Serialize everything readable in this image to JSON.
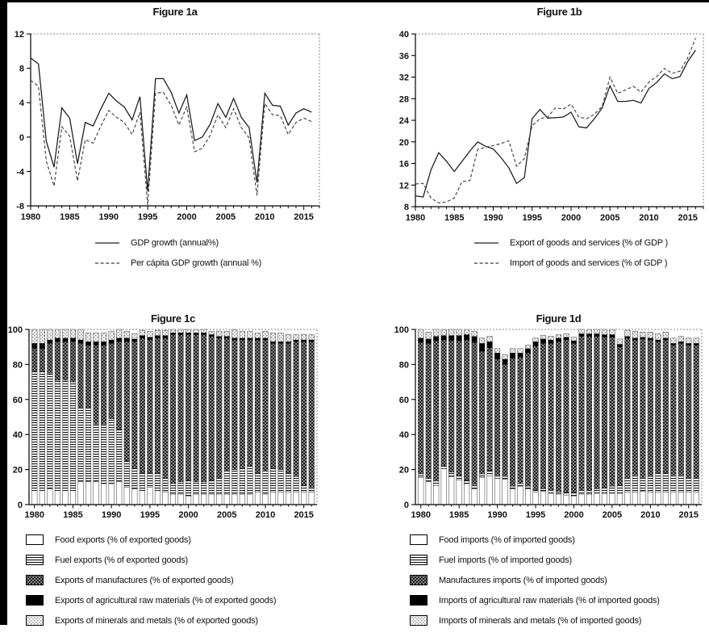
{
  "page": {
    "background": "#ffffff",
    "frame_color": "#000000",
    "text_color": "#111111"
  },
  "panels": {
    "a": {
      "title": "Figure 1a"
    },
    "b": {
      "title": "Figure 1b"
    },
    "c": {
      "title": "Figure 1c"
    },
    "d": {
      "title": "Figure 1d"
    }
  },
  "chart_data": [
    {
      "id": "fig1a",
      "type": "line",
      "title": "Figure 1a",
      "xlabel": "",
      "ylabel": "",
      "ylim": [
        -8,
        12
      ],
      "yticks": [
        -8,
        -4,
        0,
        4,
        8,
        12
      ],
      "xticks": [
        1980,
        1985,
        1990,
        1995,
        2000,
        2005,
        2010,
        2015
      ],
      "grid": false,
      "legend_position": "below",
      "x": [
        1980,
        1981,
        1982,
        1983,
        1984,
        1985,
        1986,
        1987,
        1988,
        1989,
        1990,
        1991,
        1992,
        1993,
        1994,
        1995,
        1996,
        1997,
        1998,
        1999,
        2000,
        2001,
        2002,
        2003,
        2004,
        2005,
        2006,
        2007,
        2008,
        2009,
        2010,
        2011,
        2012,
        2013,
        2014,
        2015,
        2016
      ],
      "series": [
        {
          "name": "GDP growth (annual%)",
          "style": "solid",
          "values": [
            9.2,
            8.5,
            -0.5,
            -3.5,
            3.4,
            2.2,
            -3.1,
            1.7,
            1.3,
            3.3,
            5.1,
            4.2,
            3.5,
            2.0,
            4.7,
            -6.3,
            6.8,
            6.8,
            5.2,
            2.8,
            4.9,
            -0.4,
            0.0,
            1.5,
            3.9,
            2.3,
            4.5,
            2.3,
            1.1,
            -5.3,
            5.1,
            3.7,
            3.6,
            1.4,
            2.8,
            3.3,
            2.9
          ]
        },
        {
          "name": "Per cápita GDP growth (annual %)",
          "style": "dashed",
          "values": [
            6.6,
            5.9,
            -2.8,
            -5.7,
            1.2,
            0.1,
            -5.1,
            -0.3,
            -0.7,
            1.3,
            3.1,
            2.3,
            1.7,
            0.3,
            2.9,
            -7.9,
            5.1,
            5.2,
            3.7,
            1.4,
            3.5,
            -1.7,
            -1.3,
            0.2,
            2.6,
            1.1,
            3.3,
            1.1,
            -0.1,
            -6.8,
            3.9,
            2.6,
            2.5,
            0.3,
            1.7,
            2.2,
            1.8
          ]
        }
      ]
    },
    {
      "id": "fig1b",
      "type": "line",
      "title": "Figure 1b",
      "xlabel": "",
      "ylabel": "",
      "ylim": [
        8,
        40
      ],
      "yticks": [
        8,
        12,
        16,
        20,
        24,
        28,
        32,
        36,
        40
      ],
      "xticks": [
        1980,
        1985,
        1990,
        1995,
        2000,
        2005,
        2010,
        2015
      ],
      "grid": false,
      "legend_position": "below",
      "x": [
        1980,
        1981,
        1982,
        1983,
        1984,
        1985,
        1986,
        1987,
        1988,
        1989,
        1990,
        1991,
        1992,
        1993,
        1994,
        1995,
        1996,
        1997,
        1998,
        1999,
        2000,
        2001,
        2002,
        2003,
        2004,
        2005,
        2006,
        2007,
        2008,
        2009,
        2010,
        2011,
        2012,
        2013,
        2014,
        2015,
        2016
      ],
      "series": [
        {
          "name": "Export of goods and services (% of GDP )",
          "style": "solid",
          "values": [
            10.0,
            9.8,
            14.8,
            18.0,
            16.4,
            14.5,
            16.4,
            18.3,
            20.0,
            19.2,
            18.7,
            17.1,
            15.2,
            12.3,
            13.4,
            24.3,
            26.0,
            24.4,
            24.5,
            24.6,
            25.5,
            22.8,
            22.6,
            24.3,
            26.3,
            30.4,
            27.5,
            27.5,
            27.7,
            27.2,
            29.9,
            31.0,
            32.6,
            31.7,
            32.1,
            34.9,
            37.0
          ]
        },
        {
          "name": "Import of goods and services (% of GDP )",
          "style": "dashed",
          "values": [
            12.2,
            12.3,
            9.6,
            8.7,
            8.9,
            9.6,
            12.7,
            12.8,
            18.6,
            19.0,
            19.3,
            19.7,
            20.2,
            15.5,
            16.9,
            23.0,
            24.3,
            24.6,
            26.3,
            26.1,
            27.0,
            24.6,
            24.3,
            25.1,
            26.6,
            32.0,
            29.0,
            29.6,
            30.3,
            29.2,
            31.1,
            32.1,
            33.6,
            32.7,
            33.1,
            35.6,
            39.2
          ]
        }
      ]
    },
    {
      "id": "fig1c",
      "type": "bar",
      "stacked": true,
      "title": "Figure 1c",
      "xlabel": "",
      "ylabel": "",
      "ylim": [
        0,
        100
      ],
      "yticks": [
        0,
        20,
        40,
        60,
        80,
        100
      ],
      "xticks": [
        1980,
        1985,
        1990,
        1995,
        2000,
        2005,
        2010,
        2015
      ],
      "grid": false,
      "legend_position": "below",
      "categories": [
        1980,
        1981,
        1982,
        1983,
        1984,
        1985,
        1986,
        1987,
        1988,
        1989,
        1990,
        1991,
        1992,
        1993,
        1994,
        1995,
        1996,
        1997,
        1998,
        1999,
        2000,
        2001,
        2002,
        2003,
        2004,
        2005,
        2006,
        2007,
        2008,
        2009,
        2010,
        2011,
        2012,
        2013,
        2014,
        2015,
        2016
      ],
      "series": [
        {
          "name": "Food exports (% of exported goods)",
          "pattern": "plain",
          "values": [
            8,
            8,
            9,
            8,
            8,
            8,
            13,
            13,
            13,
            12,
            12,
            13,
            10,
            9,
            8,
            10,
            8,
            7,
            6,
            6,
            5,
            6,
            6,
            6,
            6,
            6,
            6,
            6,
            6,
            7,
            6,
            7,
            7,
            7,
            7,
            7,
            7
          ]
        },
        {
          "name": "Fuel exports (% of exported goods)",
          "pattern": "hlines",
          "values": [
            68,
            68,
            66,
            63,
            63,
            62,
            42,
            42,
            33,
            34,
            37,
            30,
            15,
            12,
            10,
            8,
            10,
            8,
            6,
            7,
            9,
            7,
            7,
            8,
            9,
            13,
            14,
            15,
            16,
            11,
            13,
            14,
            13,
            11,
            9,
            4,
            3
          ]
        },
        {
          "name": "Exports of manufactures (% of exported goods)",
          "pattern": "darkchecker",
          "values": [
            13,
            13,
            17,
            22,
            22,
            23,
            37,
            36,
            45,
            45,
            43,
            50,
            68,
            72,
            77,
            76,
            77,
            80,
            85,
            84,
            83,
            84,
            84,
            82,
            80,
            76,
            74,
            73,
            72,
            76,
            75,
            71,
            72,
            74,
            77,
            82,
            83
          ]
        },
        {
          "name": "Exports of agricultural raw materials (% of exported goods)",
          "pattern": "solidblack",
          "values": [
            3,
            3,
            2,
            2,
            2,
            2,
            2,
            2,
            2,
            2,
            2,
            2,
            2,
            1.5,
            1.5,
            1.5,
            1.5,
            1.5,
            1,
            1,
            1,
            1,
            1,
            1,
            1,
            1,
            1,
            1,
            1,
            1,
            1,
            1,
            1,
            1,
            1,
            1,
            1
          ]
        },
        {
          "name": "Exports of minerals and metals (% of exported goods)",
          "pattern": "lightdots",
          "values": [
            8,
            8,
            6,
            5,
            5,
            5,
            6,
            5,
            5,
            5,
            5,
            5,
            4,
            3,
            3,
            3.5,
            3,
            3,
            2,
            2,
            2,
            2,
            2,
            2,
            3,
            3,
            5,
            4,
            4,
            3,
            4,
            5,
            5,
            4,
            3,
            3,
            3
          ]
        }
      ]
    },
    {
      "id": "fig1d",
      "type": "bar",
      "stacked": true,
      "title": "Figure 1d",
      "xlabel": "",
      "ylabel": "",
      "ylim": [
        0,
        100
      ],
      "yticks": [
        0,
        20,
        40,
        60,
        80,
        100
      ],
      "xticks": [
        1980,
        1985,
        1990,
        1995,
        2000,
        2005,
        2010,
        2015
      ],
      "grid": false,
      "legend_position": "below",
      "categories": [
        1980,
        1981,
        1982,
        1983,
        1984,
        1985,
        1986,
        1987,
        1988,
        1989,
        1990,
        1991,
        1992,
        1993,
        1994,
        1995,
        1996,
        1997,
        1998,
        1999,
        2000,
        2001,
        2002,
        2003,
        2004,
        2005,
        2006,
        2007,
        2008,
        2009,
        2010,
        2011,
        2012,
        2013,
        2014,
        2015,
        2016
      ],
      "series": [
        {
          "name": "Food imports (% of imported goods)",
          "pattern": "plain",
          "values": [
            15.5,
            13,
            11,
            20.5,
            16,
            14,
            12,
            9,
            15.5,
            16.5,
            15,
            14.5,
            9,
            10.5,
            9,
            7,
            7.5,
            6.5,
            6,
            5.5,
            5,
            6,
            6,
            6.5,
            6.5,
            6.5,
            6.5,
            7,
            7,
            7.5,
            7,
            7,
            7,
            7,
            7,
            7,
            7
          ]
        },
        {
          "name": "Fuel imports (% of imported goods)",
          "pattern": "hlines",
          "values": [
            2,
            2,
            2.5,
            1.5,
            2.5,
            2.5,
            2,
            2.5,
            2,
            3,
            2,
            1.5,
            1.5,
            1.5,
            1.5,
            1.5,
            1.5,
            1.5,
            1.5,
            1.5,
            2,
            2,
            2,
            2.5,
            3,
            4,
            4.5,
            8,
            10,
            8,
            9,
            11,
            11,
            10,
            10,
            8,
            8
          ]
        },
        {
          "name": "Manufactures imports (% of imported goods)",
          "pattern": "darkchecker",
          "values": [
            75,
            77,
            80,
            72,
            75,
            77,
            80,
            81,
            70,
            70,
            66,
            64,
            73,
            72,
            76,
            82,
            83,
            84,
            85.5,
            87,
            85,
            88,
            88,
            87,
            86,
            85,
            79,
            80,
            77,
            79,
            78,
            75,
            76,
            74,
            75,
            76,
            76
          ]
        },
        {
          "name": "Imports of agricultural raw materials (% of imported goods)",
          "pattern": "solidblack",
          "values": [
            2.5,
            2.5,
            2.5,
            2.5,
            3,
            3,
            3,
            3.5,
            4.5,
            3.5,
            3.5,
            3,
            3,
            2.5,
            2.5,
            2.5,
            2.5,
            2,
            2,
            1.5,
            1.5,
            1.5,
            1.5,
            1.5,
            1.5,
            1.5,
            1.5,
            1,
            1,
            1,
            1,
            1,
            1,
            1,
            1,
            1,
            1
          ]
        },
        {
          "name": "Imports of minerals and metals (% of imported goods)",
          "pattern": "lightdots",
          "values": [
            5,
            4,
            4,
            3.5,
            3.5,
            3.5,
            3,
            3,
            3,
            3,
            2.5,
            2.5,
            2.5,
            2.5,
            2,
            2,
            2,
            2,
            2,
            2,
            2,
            2.5,
            2.5,
            2.5,
            3,
            3,
            3,
            3.5,
            4,
            3,
            3.5,
            3.5,
            3.5,
            3,
            3,
            3,
            3
          ]
        }
      ]
    }
  ]
}
